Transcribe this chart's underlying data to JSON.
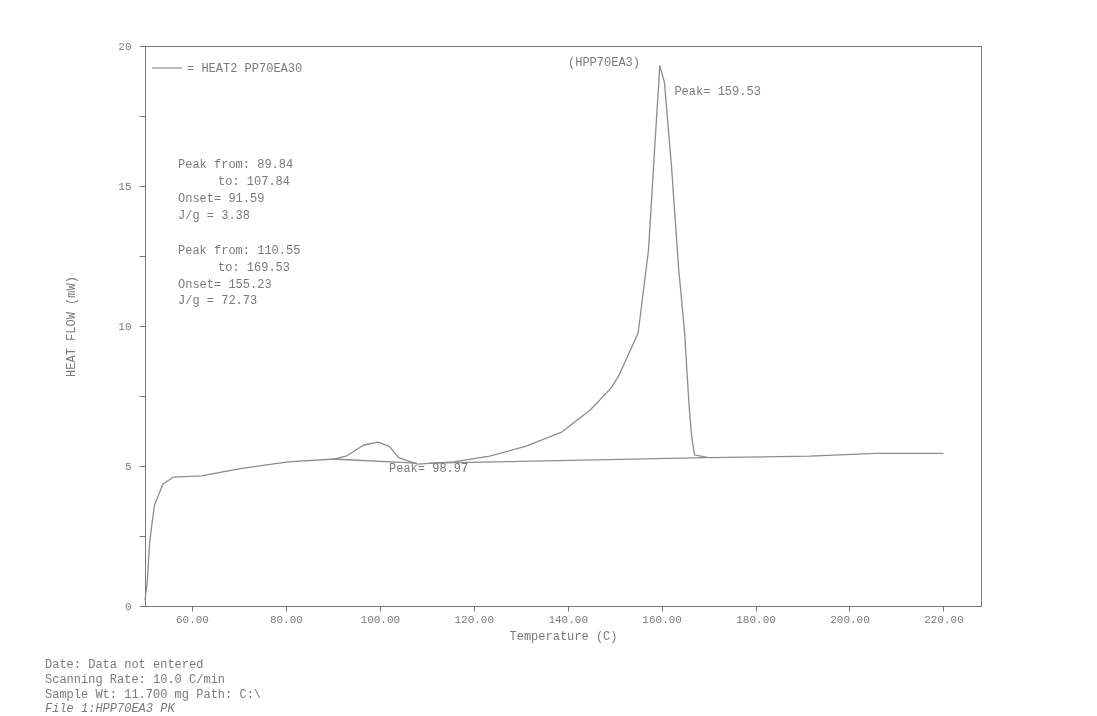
{
  "chart_data": {
    "type": "line",
    "xlabel": "Temperature (C)",
    "ylabel": "HEAT FLOW    (mW)",
    "xlim": [
      50,
      228
    ],
    "ylim": [
      0,
      20
    ],
    "xticks": [
      {
        "value": 60,
        "label": "60.00"
      },
      {
        "value": 80,
        "label": "80.00"
      },
      {
        "value": 100,
        "label": "100.00"
      },
      {
        "value": 120,
        "label": "120.00"
      },
      {
        "value": 140,
        "label": "140.00"
      },
      {
        "value": 160,
        "label": "160.00"
      },
      {
        "value": 180,
        "label": "180.00"
      },
      {
        "value": 200,
        "label": "200.00"
      },
      {
        "value": 220,
        "label": "220.00"
      }
    ],
    "yticks": [
      0,
      {
        "value": 2.5,
        "label": null
      },
      5,
      {
        "value": 7.5,
        "label": null
      },
      10,
      {
        "value": 12.5,
        "label": null
      },
      15,
      {
        "value": 17.5,
        "label": null
      },
      20
    ],
    "grid": false,
    "legend": "top left",
    "line_style": "solid",
    "marker": "none",
    "series": [
      {
        "name": "= HEAT2 PP70EA30",
        "color": "#8c8c8c",
        "x": [
          50,
          50.5,
          51,
          52,
          53.8,
          56,
          62,
          70,
          80.5,
          90.4,
          92.8,
          96.6,
          99.6,
          102,
          104,
          108,
          115.7,
          123.4,
          131,
          138.6,
          144.8,
          149.3,
          150.8,
          155,
          157.2,
          158.5,
          159.4,
          159.6,
          160.6,
          162.1,
          163.6,
          164.9,
          165.8,
          166.4,
          167,
          170,
          191.5,
          205.6,
          220
        ],
        "values": [
          0.2,
          0.9,
          2.3,
          3.6,
          4.35,
          4.6,
          4.65,
          4.9,
          5.15,
          5.25,
          5.35,
          5.75,
          5.85,
          5.7,
          5.3,
          5.07,
          5.15,
          5.35,
          5.7,
          6.2,
          7.0,
          7.8,
          8.2,
          9.75,
          12.7,
          16.3,
          18.7,
          19.3,
          18.7,
          15.7,
          12.1,
          9.75,
          7.25,
          6.05,
          5.4,
          5.3,
          5.35,
          5.45,
          5.45
        ]
      },
      {
        "type": "line",
        "color": "#8c8c8c",
        "x": [
          89.84,
          107.84
        ],
        "values": [
          5.25,
          5.1
        ]
      },
      {
        "type": "line",
        "color": "#8c8c8c",
        "x": [
          110.55,
          169.53
        ],
        "values": [
          5.1,
          5.3
        ]
      }
    ],
    "annotations": [
      "Peak from:  89.84",
      "to:  107.84",
      "Onset= 91.59",
      "J/g = 3.38",
      "Peak from:  110.55",
      "to:  169.53",
      "Onset= 155.23",
      "J/g = 72.73",
      "(HPP70EA3)",
      {
        "text": "Peak= 159.53",
        "x": 159.53,
        "y": 19.3
      },
      {
        "text": "Peak= 98.97",
        "x": 98.97,
        "y": 5.85
      },
      "Date: Data not entered",
      "Scanning Rate:  10.0 C/min",
      "Sample Wt:  11.700 mg Path: C:\\",
      "File 1:HPP70EA3  PK"
    ]
  }
}
